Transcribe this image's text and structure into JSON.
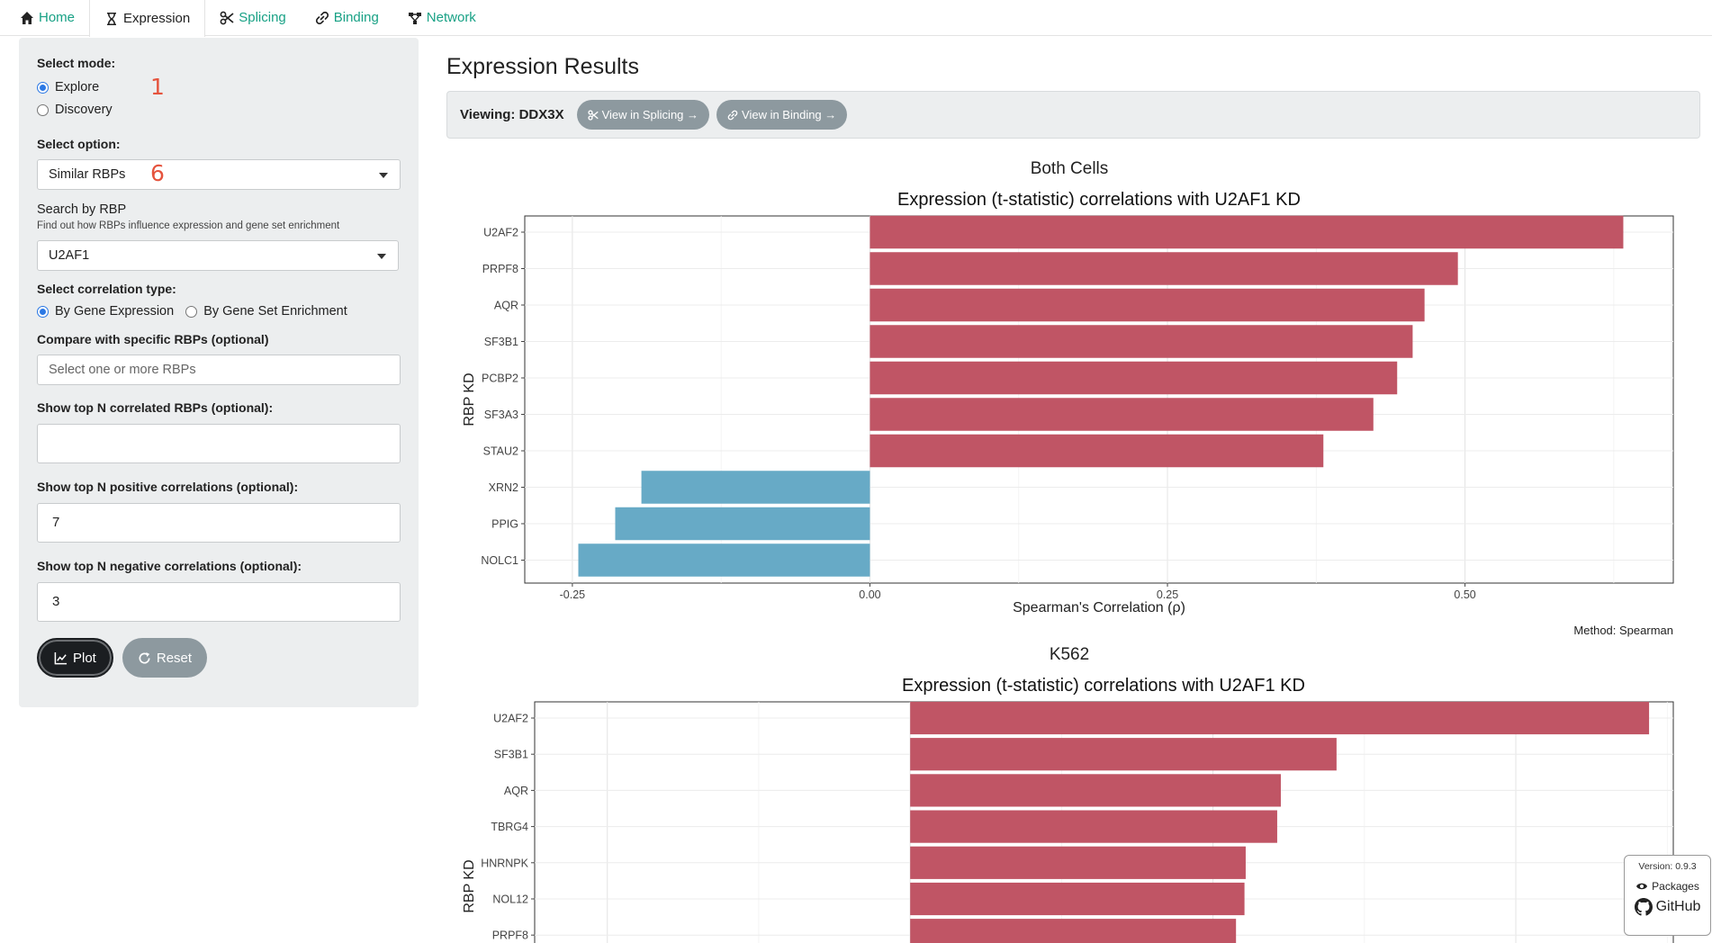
{
  "nav": {
    "tabs": [
      {
        "label": "Home",
        "icon": "home-icon"
      },
      {
        "label": "Expression",
        "icon": "hourglass-icon"
      },
      {
        "label": "Splicing",
        "icon": "scissors-icon"
      },
      {
        "label": "Binding",
        "icon": "link-icon"
      },
      {
        "label": "Network",
        "icon": "network-icon"
      }
    ]
  },
  "sidebar": {
    "mode_label": "Select mode:",
    "mode_options": [
      "Explore",
      "Discovery"
    ],
    "mode_selected": "Explore",
    "annotation_1": "1",
    "option_label": "Select option:",
    "option_value": "Similar RBPs",
    "annotation_6": "6",
    "search_label": "Search by RBP",
    "search_help": "Find out how RBPs influence expression and gene set enrichment",
    "search_value": "U2AF1",
    "corr_label": "Select correlation type:",
    "corr_options": [
      "By Gene Expression",
      "By Gene Set Enrichment"
    ],
    "corr_selected": "By Gene Expression",
    "compare_label": "Compare with specific RBPs (optional)",
    "compare_placeholder": "Select one or more RBPs",
    "topn_label": "Show top N correlated RBPs (optional):",
    "topn_value": "",
    "toppos_label": "Show top N positive correlations (optional):",
    "toppos_value": "7",
    "topneg_label": "Show top N negative correlations (optional):",
    "topneg_value": "3",
    "plot_label": "Plot",
    "reset_label": "Reset"
  },
  "main": {
    "title": "Expression Results",
    "viewing_label": "Viewing: DDX3X",
    "view_splicing_label": "View in Splicing →",
    "view_binding_label": "View in Binding →"
  },
  "version": {
    "version_text": "Version: 0.9.3",
    "packages_label": "Packages",
    "github_label": "GitHub"
  },
  "colors": {
    "positive": "#c05565",
    "negative": "#67aac6",
    "accent": "#18a185"
  },
  "chart_data": [
    {
      "type": "bar",
      "orientation": "horizontal",
      "heading": "Both Cells",
      "title": "Expression (t-statistic) correlations with U2AF1 KD",
      "xlabel": "Spearman's Correlation (ρ)",
      "ylabel": "RBP KD",
      "caption": "Method: Spearman",
      "xlim": [
        -0.29,
        0.675
      ],
      "xticks": [
        -0.25,
        0.0,
        0.25,
        0.5
      ],
      "xtick_labels": [
        "-0.25",
        "0.00",
        "0.25",
        "0.50"
      ],
      "grid": true,
      "categories": [
        "U2AF2",
        "PRPF8",
        "AQR",
        "SF3B1",
        "PCBP2",
        "SF3A3",
        "STAU2",
        "XRN2",
        "PPIG",
        "NOLC1"
      ],
      "values": [
        0.633,
        0.494,
        0.466,
        0.456,
        0.443,
        0.423,
        0.381,
        -0.192,
        -0.214,
        -0.245
      ]
    },
    {
      "type": "bar",
      "orientation": "horizontal",
      "heading": "K562",
      "title": "Expression (t-statistic) correlations with U2AF1 KD",
      "xlabel": "",
      "ylabel": "RBP KD",
      "caption": "",
      "xlim": [
        -0.31,
        0.63
      ],
      "grid": true,
      "categories": [
        "U2AF2",
        "SF3B1",
        "AQR",
        "TBRG4",
        "HNRNPK",
        "NOL12",
        "PRPF8"
      ],
      "values": [
        0.61,
        0.352,
        0.306,
        0.303,
        0.277,
        0.276,
        0.269
      ]
    }
  ]
}
